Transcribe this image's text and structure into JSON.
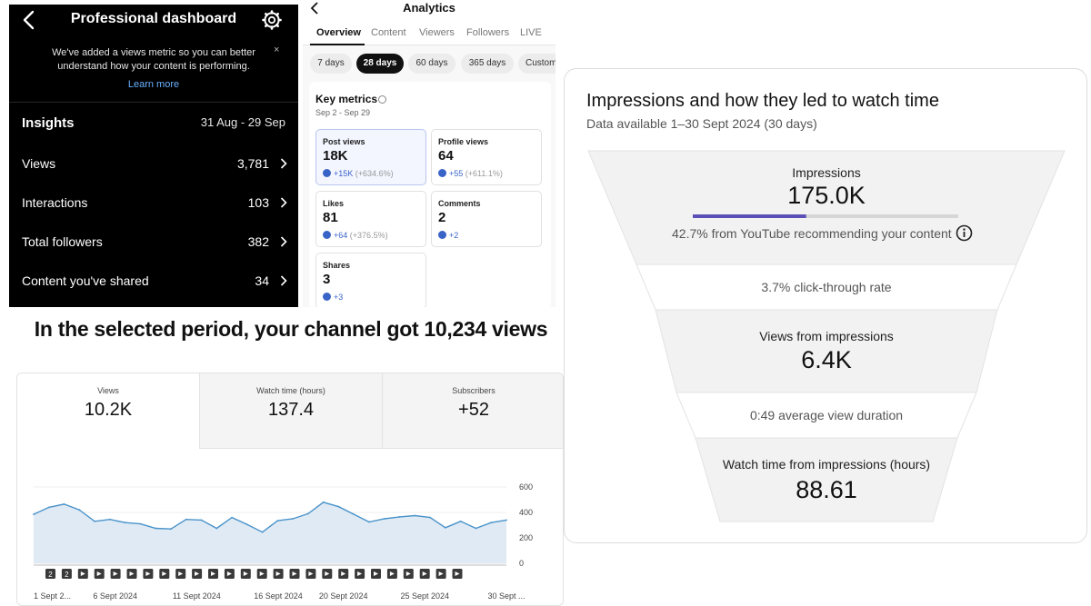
{
  "instagram": {
    "title": "Professional dashboard",
    "notice": "We've added a views metric so you can better understand how your content is performing.",
    "notice_close": "×",
    "learn_more": "Learn more",
    "insights_label": "Insights",
    "insights_range": "31 Aug - 29 Sep",
    "rows": [
      {
        "label": "Views",
        "value": "3,781"
      },
      {
        "label": "Interactions",
        "value": "103"
      },
      {
        "label": "Total followers",
        "value": "382"
      },
      {
        "label": "Content you've shared",
        "value": "34"
      }
    ]
  },
  "analytics": {
    "title": "Analytics",
    "tabs": [
      "Overview",
      "Content",
      "Viewers",
      "Followers",
      "LIVE"
    ],
    "active_tab": "Overview",
    "periods": [
      "7 days",
      "28 days",
      "60 days",
      "365 days",
      "Custom"
    ],
    "active_period": "28 days",
    "key_metrics_title": "Key metrics",
    "key_metrics_range": "Sep 2 - Sep 29",
    "metrics": [
      {
        "label": "Post views",
        "value": "18K",
        "delta": "+15K",
        "pct": "(+634.6%)"
      },
      {
        "label": "Profile views",
        "value": "64",
        "delta": "+55",
        "pct": "(+611.1%)"
      },
      {
        "label": "Likes",
        "value": "81",
        "delta": "+64",
        "pct": "(+376.5%)"
      },
      {
        "label": "Comments",
        "value": "2",
        "delta": "+2",
        "pct": ""
      },
      {
        "label": "Shares",
        "value": "3",
        "delta": "+3",
        "pct": ""
      }
    ]
  },
  "headline": "In the selected period, your channel got 10,234 views",
  "youtube_overview": {
    "stats": [
      {
        "label": "Views",
        "value": "10.2K"
      },
      {
        "label": "Watch time (hours)",
        "value": "137.4"
      },
      {
        "label": "Subscribers",
        "value": "+52"
      }
    ],
    "marker_labels": [
      "2",
      "2"
    ],
    "marker_count": 26
  },
  "chart_data": {
    "type": "area",
    "title": "",
    "xlabel": "",
    "ylabel": "",
    "ylim": [
      0,
      600
    ],
    "yticks": [
      0,
      200,
      400,
      600
    ],
    "xtick_labels": [
      "1 Sept 2...",
      "6 Sept 2024",
      "11 Sept 2024",
      "16 Sept 2024",
      "20 Sept 2024",
      "25 Sept 2024",
      "30 Sept ..."
    ],
    "xtick_index": [
      0,
      5,
      10,
      15,
      19,
      24,
      29
    ],
    "series": [
      {
        "values": [
          385,
          440,
          465,
          420,
          330,
          345,
          320,
          310,
          275,
          270,
          345,
          340,
          275,
          360,
          305,
          245,
          335,
          350,
          390,
          480,
          445,
          385,
          325,
          350,
          365,
          375,
          360,
          280,
          330,
          275,
          320,
          340
        ]
      }
    ],
    "colors": {
      "line": "#4a93c9",
      "fill": "#dfeaf5"
    },
    "grid": true
  },
  "funnel": {
    "title": "Impressions and how they led to watch time",
    "subtitle": "Data available 1–30 Sept 2024 (30 days)",
    "impressions_label": "Impressions",
    "impressions_value": "175.0K",
    "recommend_share": 0.427,
    "recommend_text": "42.7% from YouTube recommending your content",
    "ctr_text": "3.7% click-through rate",
    "views_label": "Views from impressions",
    "views_value": "6.4K",
    "avd_text": "0:49 average view duration",
    "watch_label": "Watch time from impressions (hours)",
    "watch_value": "88.61",
    "colors": {
      "bar": "#5b4fb8",
      "track": "#d6d6d6",
      "stage": "#f2f2f2"
    }
  }
}
